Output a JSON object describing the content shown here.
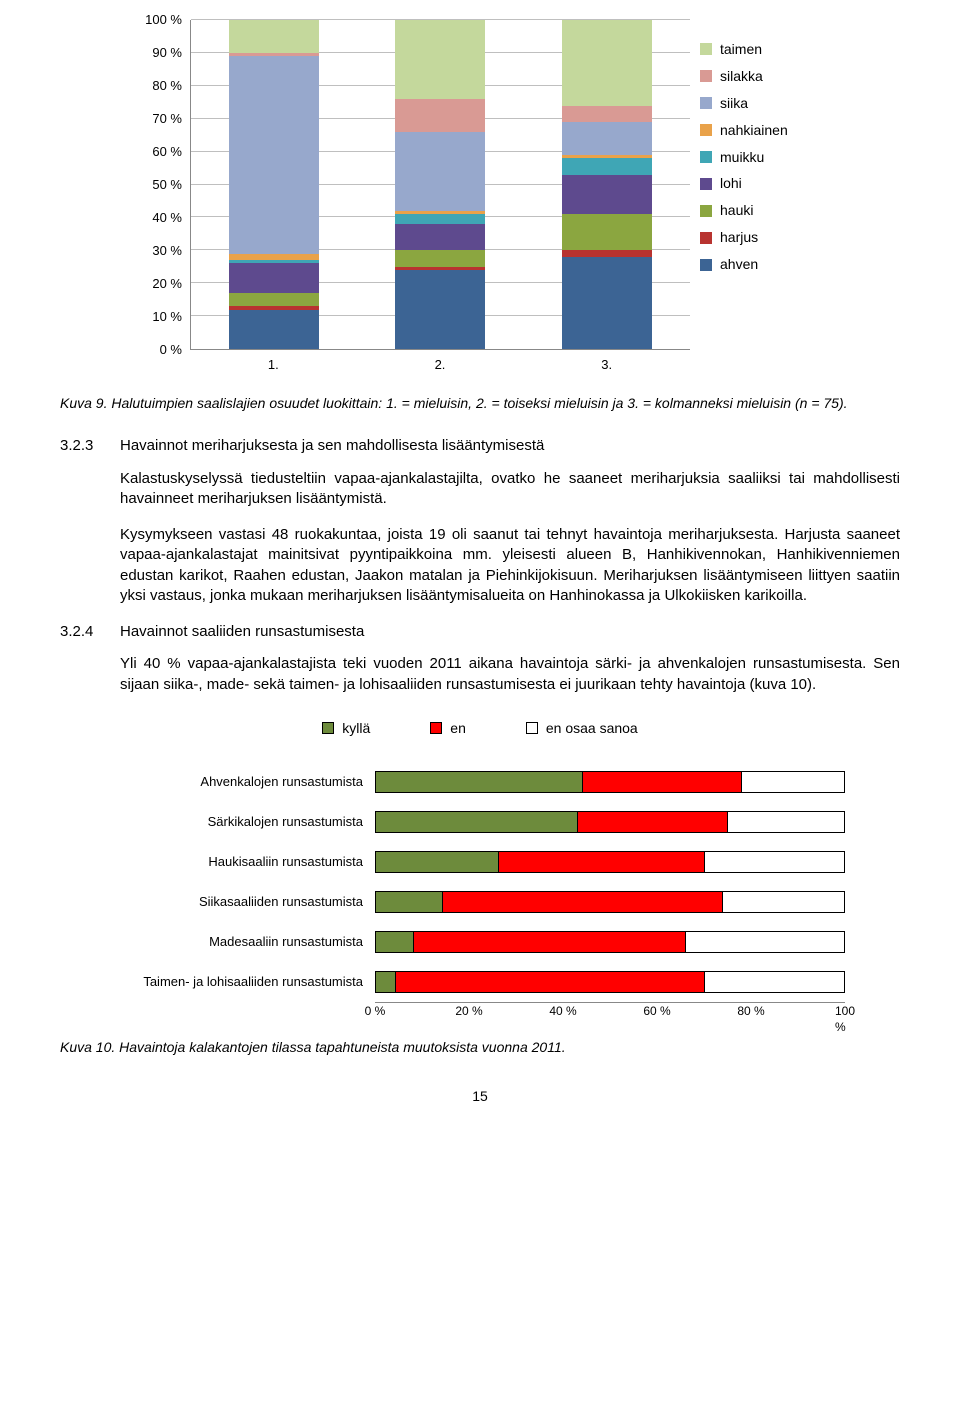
{
  "stacked_chart": {
    "ylim": [
      0,
      100
    ],
    "ytick_step": 10,
    "ytick_suffix": " %",
    "categories": [
      "1.",
      "2.",
      "3."
    ],
    "series_order": [
      "ahven",
      "harjus",
      "hauki",
      "lohi",
      "muikku",
      "nahkiainen",
      "siika",
      "silakka",
      "taimen"
    ],
    "colors": {
      "taimen": "#c4d89c",
      "silakka": "#d99a94",
      "siika": "#97a8cc",
      "nahkiainen": "#e9a24a",
      "muikku": "#3fa6b5",
      "lohi": "#5e4a8e",
      "hauki": "#8ba640",
      "harjus": "#b83330",
      "ahven": "#3c6494"
    },
    "legend_labels": {
      "taimen": "taimen",
      "silakka": "silakka",
      "siika": "siika",
      "nahkiainen": "nahkiainen",
      "muikku": "muikku",
      "lohi": "lohi",
      "hauki": "hauki",
      "harjus": "harjus",
      "ahven": "ahven"
    },
    "data": {
      "1.": {
        "ahven": 12,
        "harjus": 1,
        "hauki": 4,
        "lohi": 9,
        "muikku": 1,
        "nahkiainen": 2,
        "siika": 60,
        "silakka": 1,
        "taimen": 10
      },
      "2.": {
        "ahven": 24,
        "harjus": 1,
        "hauki": 5,
        "lohi": 8,
        "muikku": 3,
        "nahkiainen": 1,
        "siika": 24,
        "silakka": 10,
        "taimen": 24
      },
      "3.": {
        "ahven": 28,
        "harjus": 2,
        "hauki": 11,
        "lohi": 12,
        "muikku": 5,
        "nahkiainen": 1,
        "siika": 10,
        "silakka": 5,
        "taimen": 26
      }
    }
  },
  "caption1": "Kuva 9. Halutuimpien saalislajien osuudet luokittain: 1. = mieluisin, 2. = toiseksi mieluisin ja 3. = kolmanneksi mieluisin (n = 75).",
  "sec323_num": "3.2.3",
  "sec323_title": "Havainnot meriharjuksesta ja sen mahdollisesta lisääntymisestä",
  "sec323_p1": "Kalastuskyselyssä tiedusteltiin vapaa-ajankalastajilta, ovatko he saaneet meriharjuksia saaliiksi tai mahdollisesti havainneet meriharjuksen lisääntymistä.",
  "sec323_p2": "Kysymykseen vastasi 48 ruokakuntaa, joista 19 oli saanut tai tehnyt havaintoja meriharjuksesta. Harjusta saaneet vapaa-ajankalastajat mainitsivat pyyntipaikkoina mm. yleisesti alueen B, Hanhikivennokan, Hanhikivenniemen edustan karikot, Raahen edustan, Jaakon matalan ja Piehinkijokisuun. Meriharjuksen lisääntymiseen liittyen saatiin yksi vastaus, jonka mukaan meriharjuksen lisääntymisalueita on Hanhinokassa ja Ulkokiisken karikoilla.",
  "sec324_num": "3.2.4",
  "sec324_title": "Havainnot saaliiden runsastumisesta",
  "sec324_p1": "Yli 40 % vapaa-ajankalastajista teki vuoden 2011 aikana havaintoja särki- ja ahvenkalojen runsastumisesta. Sen sijaan siika-, made- sekä taimen- ja lohisaaliiden runsastumisesta ei juurikaan tehty havaintoja (kuva 10).",
  "hbar_chart": {
    "legend": {
      "kylla": "kyllä",
      "en": "en",
      "eos": "en osaa sanoa"
    },
    "colors": {
      "kylla": "#6d8b3c",
      "en": "#ff0000",
      "eos": "#ffffff"
    },
    "xlim": [
      0,
      100
    ],
    "xtick_step": 20,
    "xtick_suffix": " %",
    "rows": [
      {
        "label": "Ahvenkalojen runsastumista",
        "kylla": 44,
        "en": 34,
        "eos": 22
      },
      {
        "label": "Särkikalojen runsastumista",
        "kylla": 43,
        "en": 32,
        "eos": 25
      },
      {
        "label": "Haukisaaliin runsastumista",
        "kylla": 26,
        "en": 44,
        "eos": 30
      },
      {
        "label": "Siikasaaliiden runsastumista",
        "kylla": 14,
        "en": 60,
        "eos": 26
      },
      {
        "label": "Madesaaliin runsastumista",
        "kylla": 8,
        "en": 58,
        "eos": 34
      },
      {
        "label": "Taimen- ja lohisaaliiden runsastumista",
        "kylla": 4,
        "en": 66,
        "eos": 30
      }
    ]
  },
  "caption2": "Kuva 10. Havaintoja kalakantojen tilassa tapahtuneista muutoksista vuonna 2011.",
  "page_number": "15"
}
